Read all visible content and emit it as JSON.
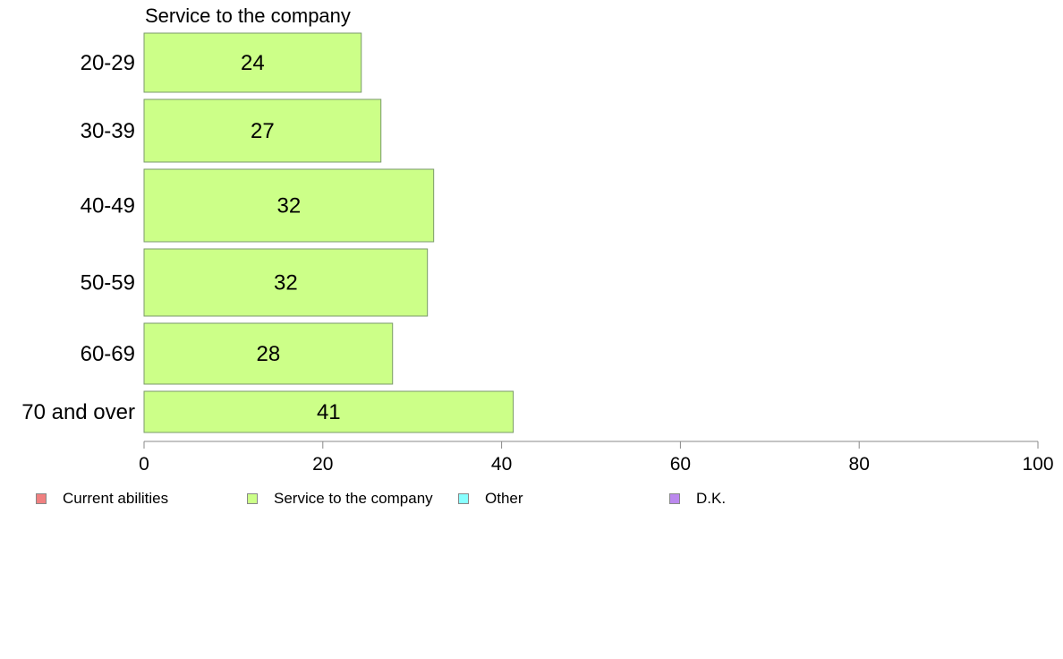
{
  "chart_data": {
    "type": "bar",
    "orientation": "horizontal",
    "title": "Service to the company",
    "categories": [
      "20-29",
      "30-39",
      "40-49",
      "50-59",
      "60-69",
      "70 and over"
    ],
    "series": [
      {
        "name": "Service to the company",
        "color": "#ccff88",
        "values": [
          24.3,
          26.5,
          32.4,
          31.7,
          27.8,
          41.3
        ],
        "labels": [
          "24",
          "27",
          "32",
          "32",
          "28",
          "41"
        ]
      }
    ],
    "xlim": [
      0,
      100
    ],
    "x_ticks": [
      0,
      20,
      40,
      60,
      80,
      100
    ],
    "x_tick_labels": [
      "0",
      "20",
      "40",
      "60",
      "80",
      "100"
    ],
    "grid": false,
    "legend_position": "bottom",
    "legend": [
      {
        "label": "Current abilities",
        "color": "#f08080"
      },
      {
        "label": "Service to the company",
        "color": "#ccff88"
      },
      {
        "label": "Other",
        "color": "#88ffff"
      },
      {
        "label": "D.K.",
        "color": "#bb88ee"
      }
    ]
  }
}
